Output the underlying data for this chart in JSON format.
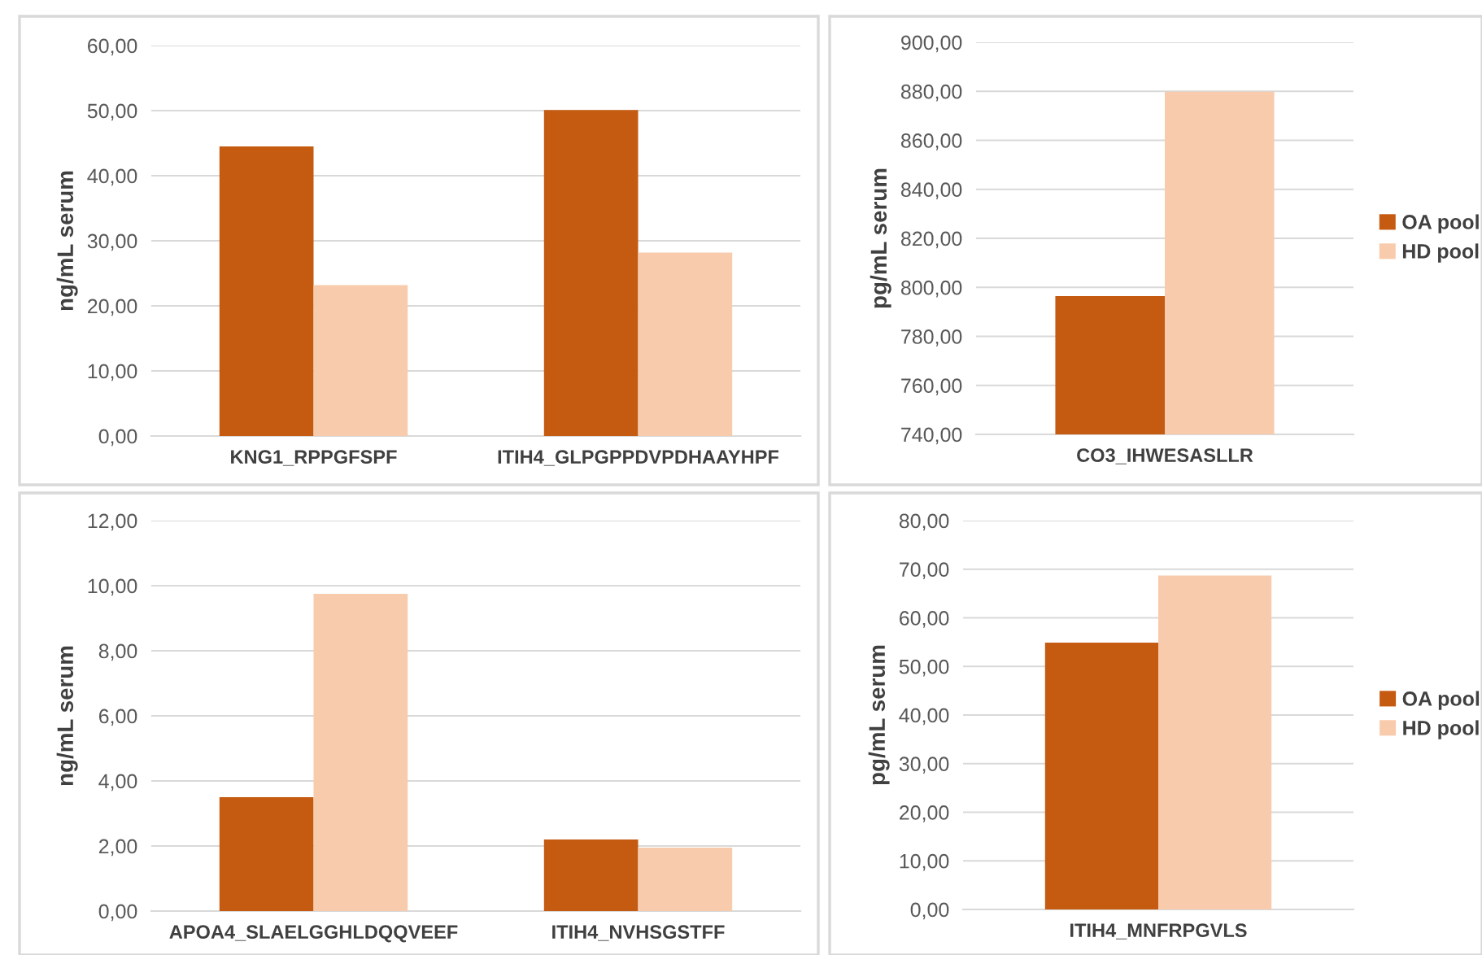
{
  "chart_data": [
    {
      "type": "bar",
      "categories": [
        "KNG1_RPPGFSPF",
        "ITIH4_GLPGPPDVPDHAAYHPF"
      ],
      "ylabel": "ng/mL serum",
      "series": [
        {
          "color": "#c55a11",
          "values": [
            44.5,
            50.1
          ]
        },
        {
          "color": "#f8cbad",
          "values": [
            23.2,
            28.2
          ]
        }
      ],
      "ylim": [
        0,
        60
      ],
      "yticks": [
        {
          "value": 0,
          "label": "0,00"
        },
        {
          "value": 10,
          "label": "10,00"
        },
        {
          "value": 20,
          "label": "20,00"
        },
        {
          "value": 30,
          "label": "30,00"
        },
        {
          "value": 40,
          "label": "40,00"
        },
        {
          "value": 50,
          "label": "50,00"
        },
        {
          "value": 60,
          "label": "60,00"
        }
      ],
      "grid": "y",
      "legend": false
    },
    {
      "type": "bar",
      "categories": [
        "CO3_IHWESASLLR"
      ],
      "ylabel": "pg/mL serum",
      "series": [
        {
          "name": "OA pool",
          "color": "#c55a11",
          "values": [
            796.4
          ]
        },
        {
          "name": "HD pool",
          "color": "#f8cbad",
          "values": [
            879.8
          ]
        }
      ],
      "ylim": [
        740,
        900
      ],
      "yticks": [
        {
          "value": 740,
          "label": "740,00"
        },
        {
          "value": 760,
          "label": "760,00"
        },
        {
          "value": 780,
          "label": "780,00"
        },
        {
          "value": 800,
          "label": "800,00"
        },
        {
          "value": 820,
          "label": "820,00"
        },
        {
          "value": 840,
          "label": "840,00"
        },
        {
          "value": 860,
          "label": "860,00"
        },
        {
          "value": 880,
          "label": "880,00"
        },
        {
          "value": 900,
          "label": "900,00"
        }
      ],
      "grid": "y",
      "legend": "right"
    },
    {
      "type": "bar",
      "categories": [
        "APOA4_SLAELGGHLDQQVEEF",
        "ITIH4_NVHSGSTFF"
      ],
      "ylabel": "ng/mL serum",
      "series": [
        {
          "color": "#c55a11",
          "values": [
            3.5,
            2.2
          ]
        },
        {
          "color": "#f8cbad",
          "values": [
            9.75,
            1.95
          ]
        }
      ],
      "ylim": [
        0,
        12
      ],
      "yticks": [
        {
          "value": 0,
          "label": "0,00"
        },
        {
          "value": 2,
          "label": "2,00"
        },
        {
          "value": 4,
          "label": "4,00"
        },
        {
          "value": 6,
          "label": "6,00"
        },
        {
          "value": 8,
          "label": "8,00"
        },
        {
          "value": 10,
          "label": "10,00"
        },
        {
          "value": 12,
          "label": "12,00"
        }
      ],
      "grid": "y",
      "legend": false
    },
    {
      "type": "bar",
      "categories": [
        "ITIH4_MNFRPGVLS"
      ],
      "ylabel": "pg/mL serum",
      "series": [
        {
          "name": "OA pool",
          "color": "#c55a11",
          "values": [
            54.9
          ]
        },
        {
          "name": "HD pool",
          "color": "#f8cbad",
          "values": [
            68.7
          ]
        }
      ],
      "ylim": [
        0,
        80
      ],
      "yticks": [
        {
          "value": 0,
          "label": "0,00"
        },
        {
          "value": 10,
          "label": "10,00"
        },
        {
          "value": 20,
          "label": "20,00"
        },
        {
          "value": 30,
          "label": "30,00"
        },
        {
          "value": 40,
          "label": "40,00"
        },
        {
          "value": 50,
          "label": "50,00"
        },
        {
          "value": 60,
          "label": "60,00"
        },
        {
          "value": 70,
          "label": "70,00"
        },
        {
          "value": 80,
          "label": "80,00"
        }
      ],
      "grid": "y",
      "legend": "right"
    }
  ]
}
